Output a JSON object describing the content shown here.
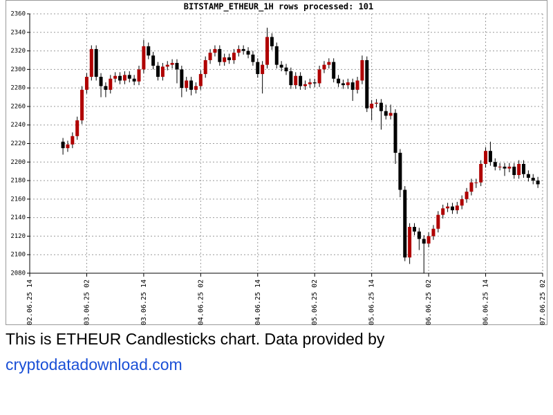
{
  "chart_data": {
    "type": "candlestick",
    "title": "BITSTAMP_ETHEUR_1H rows processed: 101",
    "categories": [
      null,
      null,
      null,
      null,
      null,
      null,
      null,
      null,
      null,
      null,
      null,
      null,
      null,
      null,
      null,
      null,
      null,
      null,
      null,
      null,
      null,
      null,
      null,
      null,
      null,
      null,
      null,
      null,
      null,
      null,
      null,
      null,
      null,
      null,
      null,
      null,
      null,
      null,
      null,
      null,
      null,
      null,
      null,
      null,
      null,
      null,
      null,
      null,
      null,
      null,
      null,
      null,
      null,
      null,
      null,
      null,
      null,
      null,
      null,
      null,
      null,
      null,
      null,
      null,
      null,
      null,
      null,
      null,
      null,
      null,
      null,
      null,
      null,
      null,
      null,
      null,
      null,
      null,
      null,
      null,
      null,
      null,
      null,
      null,
      null,
      null,
      null,
      null,
      null,
      null,
      null,
      null,
      null,
      null,
      null,
      null,
      null,
      null,
      null,
      null,
      null
    ],
    "open": [
      2222,
      2215,
      2219,
      2228,
      2245,
      2278,
      2292,
      2322,
      2292,
      2282,
      2278,
      2290,
      2293,
      2288,
      2294,
      2290,
      2287,
      2300,
      2325,
      2315,
      2304,
      2292,
      2303,
      2305,
      2307,
      2300,
      2280,
      2288,
      2278,
      2282,
      2295,
      2310,
      2318,
      2322,
      2308,
      2313,
      2310,
      2318,
      2322,
      2320,
      2316,
      2308,
      2295,
      2305,
      2335,
      2325,
      2305,
      2302,
      2298,
      2283,
      2293,
      2282,
      2284,
      2286,
      2285,
      2300,
      2305,
      2308,
      2290,
      2285,
      2283,
      2286,
      2278,
      2288,
      2310,
      2258,
      2263,
      2264,
      2255,
      2250,
      2253,
      2210,
      2170,
      2097,
      2130,
      2125,
      2117,
      2112,
      2120,
      2128,
      2143,
      2150,
      2152,
      2148,
      2153,
      2160,
      2168,
      2178,
      2178,
      2198,
      2212,
      2200,
      2195,
      2195,
      2193,
      2195,
      2186,
      2198,
      2187,
      2183,
      2180
    ],
    "high": [
      2226,
      2223,
      2232,
      2249,
      2282,
      2296,
      2326,
      2326,
      2296,
      2286,
      2294,
      2297,
      2297,
      2298,
      2298,
      2294,
      2304,
      2332,
      2329,
      2319,
      2308,
      2307,
      2309,
      2311,
      2311,
      2304,
      2292,
      2292,
      2286,
      2299,
      2314,
      2322,
      2326,
      2326,
      2317,
      2317,
      2322,
      2326,
      2326,
      2324,
      2320,
      2312,
      2309,
      2345,
      2339,
      2329,
      2309,
      2306,
      2302,
      2297,
      2297,
      2288,
      2290,
      2290,
      2304,
      2309,
      2312,
      2312,
      2294,
      2289,
      2290,
      2290,
      2292,
      2315,
      2314,
      2267,
      2268,
      2268,
      2262,
      2262,
      2257,
      2214,
      2174,
      2134,
      2134,
      2129,
      2121,
      2124,
      2132,
      2147,
      2154,
      2156,
      2156,
      2157,
      2164,
      2172,
      2182,
      2182,
      2202,
      2216,
      2222,
      2204,
      2199,
      2199,
      2199,
      2199,
      2202,
      2202,
      2191,
      2187,
      2184
    ],
    "low": [
      2208,
      2211,
      2215,
      2224,
      2241,
      2274,
      2288,
      2288,
      2270,
      2270,
      2274,
      2286,
      2284,
      2284,
      2286,
      2283,
      2283,
      2296,
      2311,
      2300,
      2288,
      2288,
      2299,
      2301,
      2285,
      2270,
      2276,
      2272,
      2274,
      2278,
      2291,
      2306,
      2314,
      2304,
      2304,
      2306,
      2306,
      2314,
      2316,
      2312,
      2304,
      2291,
      2274,
      2301,
      2321,
      2301,
      2298,
      2294,
      2279,
      2279,
      2278,
      2278,
      2280,
      2281,
      2281,
      2296,
      2301,
      2286,
      2281,
      2279,
      2279,
      2266,
      2274,
      2284,
      2254,
      2245,
      2259,
      2235,
      2246,
      2246,
      2198,
      2162,
      2093,
      2090,
      2121,
      2105,
      2080,
      2108,
      2116,
      2124,
      2139,
      2146,
      2144,
      2144,
      2149,
      2156,
      2164,
      2172,
      2174,
      2194,
      2196,
      2191,
      2191,
      2185,
      2189,
      2182,
      2182,
      2183,
      2179,
      2176,
      2172
    ],
    "close": [
      2215,
      2219,
      2228,
      2245,
      2278,
      2292,
      2322,
      2292,
      2282,
      2278,
      2290,
      2293,
      2288,
      2294,
      2290,
      2287,
      2300,
      2325,
      2315,
      2304,
      2292,
      2303,
      2305,
      2307,
      2300,
      2280,
      2288,
      2278,
      2282,
      2295,
      2310,
      2318,
      2322,
      2308,
      2313,
      2310,
      2318,
      2322,
      2320,
      2316,
      2308,
      2295,
      2305,
      2335,
      2325,
      2305,
      2302,
      2298,
      2283,
      2293,
      2282,
      2284,
      2286,
      2285,
      2300,
      2305,
      2308,
      2290,
      2285,
      2283,
      2286,
      2278,
      2288,
      2310,
      2258,
      2263,
      2264,
      2255,
      2250,
      2253,
      2210,
      2170,
      2097,
      2130,
      2125,
      2117,
      2112,
      2120,
      2128,
      2143,
      2150,
      2152,
      2148,
      2153,
      2160,
      2168,
      2178,
      2178,
      2198,
      2212,
      2200,
      2195,
      2195,
      2193,
      2195,
      2186,
      2198,
      2187,
      2183,
      2180,
      2176
    ],
    "up_color": "#b00000",
    "down_color": "#000000",
    "ylim": [
      2080,
      2360
    ],
    "yticks": [
      2080,
      2100,
      2120,
      2140,
      2160,
      2180,
      2200,
      2220,
      2240,
      2260,
      2280,
      2300,
      2320,
      2340,
      2360
    ],
    "xlim": [
      -7,
      101
    ],
    "xticks": [
      {
        "value": -7,
        "label": "02.06.25 14"
      },
      {
        "value": 5,
        "label": "03.06.25 02"
      },
      {
        "value": 17,
        "label": "03.06.25 14"
      },
      {
        "value": 29,
        "label": "04.06.25 02"
      },
      {
        "value": 41,
        "label": "04.06.25 14"
      },
      {
        "value": 53,
        "label": "05.06.25 02"
      },
      {
        "value": 65,
        "label": "05.06.25 14"
      },
      {
        "value": 77,
        "label": "06.06.25 02"
      },
      {
        "value": 89,
        "label": "06.06.25 14"
      },
      {
        "value": 101,
        "label": "07.06.25 02"
      }
    ],
    "grid": true
  },
  "caption": {
    "text": "This is ETHEUR Candlesticks chart. Data provided by",
    "link": "cryptodatadownload.com"
  }
}
